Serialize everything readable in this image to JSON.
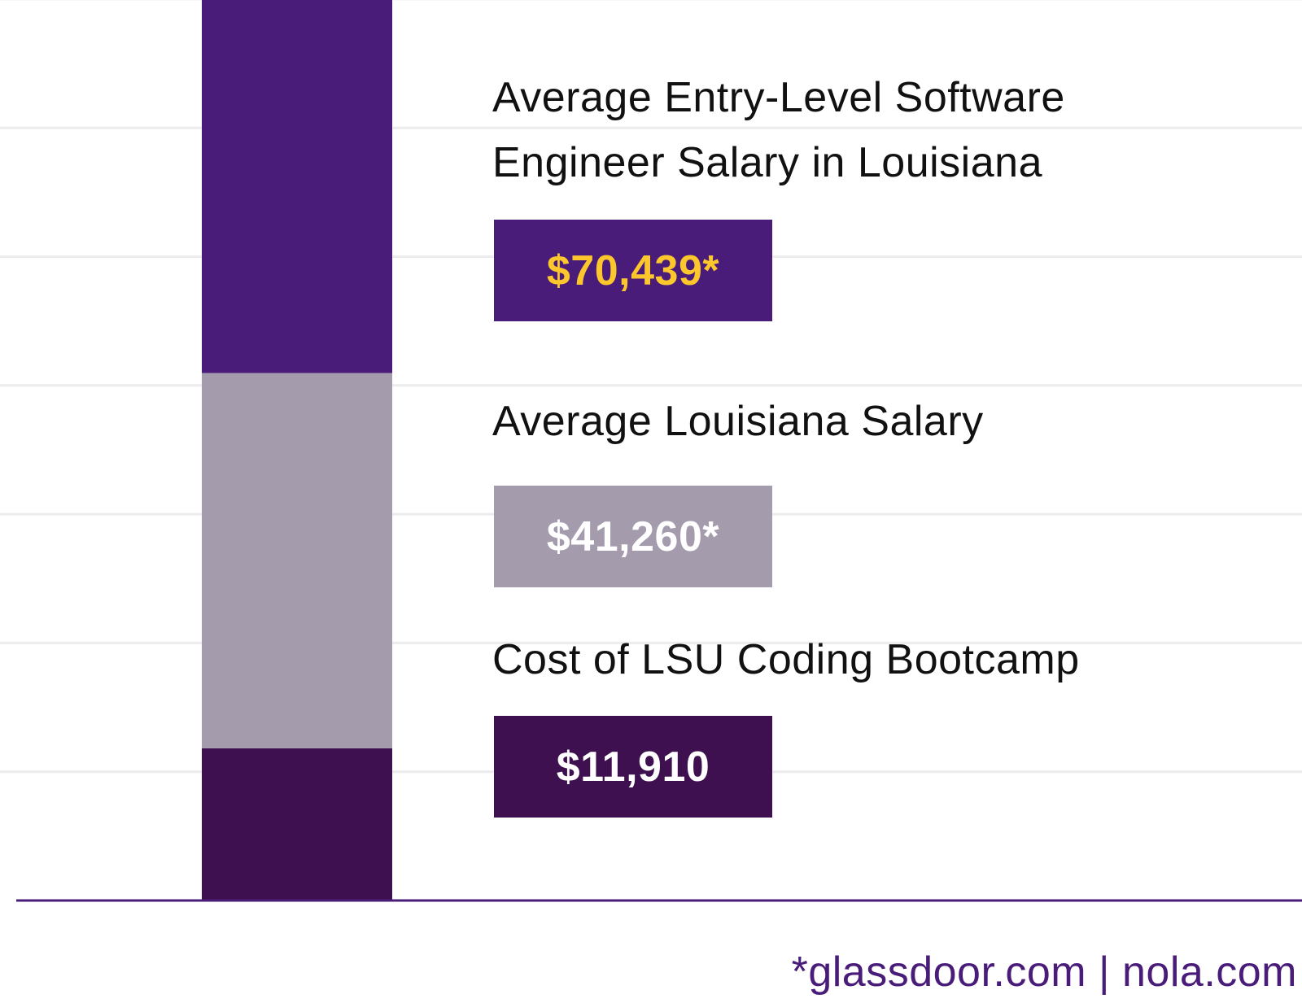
{
  "chart_data": {
    "type": "bar",
    "stacked": true,
    "categories": [
      ""
    ],
    "series": [
      {
        "name": "Cost of LSU Coding Bootcamp",
        "value": 11910,
        "display": "$11,910",
        "color": "#3f104f",
        "value_color": "#ffffff"
      },
      {
        "name": "Average Louisiana Salary",
        "value": 41260,
        "display": "$41,260*",
        "color": "#a49cad",
        "value_color": "#ffffff"
      },
      {
        "name": "Average Entry-Level Software Engineer Salary in Louisiana",
        "value": 70439,
        "display": "$70,439*",
        "color": "#4a1c7a",
        "value_color": "#fcc62d"
      }
    ],
    "ylim": [
      0,
      70439
    ],
    "grid": true,
    "legend": "right"
  },
  "legend": {
    "entry_salary_line1": "Average Entry-Level Software",
    "entry_salary_line2": "Engineer Salary in Louisiana",
    "entry_salary_value": "$70,439*",
    "avg_salary_label": "Average Louisiana Salary",
    "avg_salary_value": "$41,260*",
    "bootcamp_label": "Cost of LSU Coding Bootcamp",
    "bootcamp_value": "$11,910"
  },
  "source": "*glassdoor.com | nola.com",
  "colors": {
    "axis": "#4a1c7a",
    "grid": "#ececec",
    "source_text": "#4a1c7a"
  }
}
